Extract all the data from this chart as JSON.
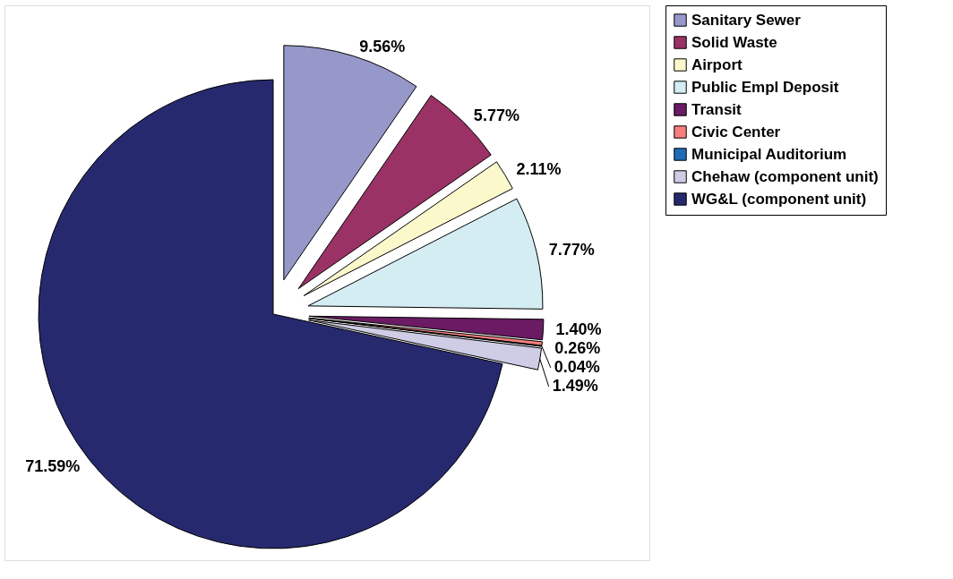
{
  "chart_data": {
    "type": "pie",
    "categories": [
      "Sanitary Sewer",
      "Solid Waste",
      "Airport",
      "Public Empl Deposit",
      "Transit",
      "Civic Center",
      "Municipal Auditorium",
      "Chehaw (component unit)",
      "WG&L (component unit)"
    ],
    "values": [
      9.56,
      5.77,
      2.11,
      7.77,
      1.4,
      0.26,
      0.04,
      1.49,
      71.59
    ],
    "value_labels": [
      "9.56%",
      "5.77%",
      "2.11%",
      "7.77%",
      "1.40%",
      "0.26%",
      "0.04%",
      "1.49%",
      "71.59%"
    ],
    "colors": [
      "#9598c9",
      "#9a3265",
      "#fbf8cb",
      "#d3edf3",
      "#6a1b63",
      "#f57f7d",
      "#1f6bb5",
      "#cfcce6",
      "#27296e"
    ],
    "legend": "right"
  }
}
